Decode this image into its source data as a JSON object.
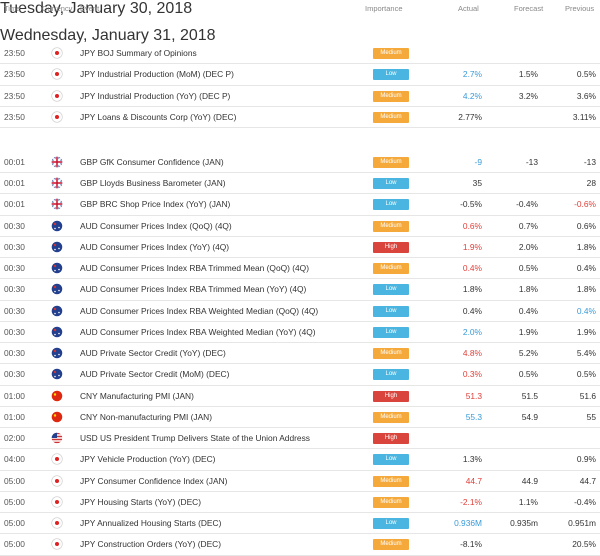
{
  "header": {
    "time": "Time",
    "currency": "Currency",
    "event": "Event",
    "importance": "Importance",
    "actual": "Actual",
    "forecast": "Forecast",
    "previous": "Previous"
  },
  "sections": [
    {
      "date": "Tuesday, January 30, 2018",
      "rows": [
        {
          "time": "23:50",
          "event": "JPY BOJ Summary of Opinions",
          "importance": "Medium",
          "actual": null,
          "forecast": null,
          "previous": null
        },
        {
          "time": "23:50",
          "event": "JPY Industrial Production (MoM) (DEC P)",
          "importance": "Low",
          "actual": "2.7%",
          "actual_color": "#3a9ad9",
          "forecast": "1.5%",
          "previous": "0.5%"
        },
        {
          "time": "23:50",
          "event": "JPY Industrial Production (YoY) (DEC P)",
          "importance": "Medium",
          "actual": "4.2%",
          "actual_color": "#3a9ad9",
          "forecast": "3.2%",
          "previous": "3.6%"
        },
        {
          "time": "23:50",
          "event": "JPY Loans & Discounts Corp (YoY) (DEC)",
          "importance": "Medium",
          "actual": "2.77%",
          "forecast": null,
          "previous": "3.11%"
        }
      ]
    },
    {
      "date": "Wednesday, January 31, 2018",
      "rows": [
        {
          "time": "00:01",
          "event": "GBP GfK Consumer Confidence (JAN)",
          "importance": "Medium",
          "actual": "-9",
          "actual_color": "#3a9ad9",
          "forecast": "-13",
          "previous": "-13"
        },
        {
          "time": "00:01",
          "event": "GBP Lloyds Business Barometer (JAN)",
          "importance": "Low",
          "actual": "35",
          "forecast": null,
          "previous": "28"
        },
        {
          "time": "00:01",
          "event": "GBP BRC Shop Price Index (YoY) (JAN)",
          "importance": "Low",
          "actual": "-0.5%",
          "forecast": "-0.4%",
          "previous": "-0.6%",
          "previous_color": "#e0403a"
        },
        {
          "time": "00:30",
          "event": "AUD Consumer Prices Index (QoQ) (4Q)",
          "importance": "Medium",
          "actual": "0.6%",
          "actual_color": "#e0403a",
          "forecast": "0.7%",
          "previous": "0.6%"
        },
        {
          "time": "00:30",
          "event": "AUD Consumer Prices Index (YoY) (4Q)",
          "importance": "High",
          "actual": "1.9%",
          "actual_color": "#e0403a",
          "forecast": "2.0%",
          "previous": "1.8%"
        },
        {
          "time": "00:30",
          "event": "AUD Consumer Prices Index RBA Trimmed Mean (QoQ) (4Q)",
          "importance": "Medium",
          "actual": "0.4%",
          "actual_color": "#e0403a",
          "forecast": "0.5%",
          "previous": "0.4%"
        },
        {
          "time": "00:30",
          "event": "AUD Consumer Prices Index RBA Trimmed Mean (YoY) (4Q)",
          "importance": "Low",
          "actual": "1.8%",
          "forecast": "1.8%",
          "previous": "1.8%"
        },
        {
          "time": "00:30",
          "event": "AUD Consumer Prices Index RBA Weighted Median (QoQ) (4Q)",
          "importance": "Low",
          "actual": "0.4%",
          "forecast": "0.4%",
          "previous": "0.4%",
          "previous_color": "#3a9ad9"
        },
        {
          "time": "00:30",
          "event": "AUD Consumer Prices Index RBA Weighted Median (YoY) (4Q)",
          "importance": "Low",
          "actual": "2.0%",
          "actual_color": "#3a9ad9",
          "forecast": "1.9%",
          "previous": "1.9%"
        },
        {
          "time": "00:30",
          "event": "AUD Private Sector Credit (YoY) (DEC)",
          "importance": "Medium",
          "actual": "4.8%",
          "actual_color": "#e0403a",
          "forecast": "5.2%",
          "previous": "5.4%"
        },
        {
          "time": "00:30",
          "event": "AUD Private Sector Credit (MoM) (DEC)",
          "importance": "Low",
          "actual": "0.3%",
          "actual_color": "#e0403a",
          "forecast": "0.5%",
          "previous": "0.5%"
        },
        {
          "time": "01:00",
          "event": "CNY Manufacturing PMI (JAN)",
          "importance": "High",
          "actual": "51.3",
          "actual_color": "#e0403a",
          "forecast": "51.5",
          "previous": "51.6"
        },
        {
          "time": "01:00",
          "event": "CNY Non-manufacturing PMI (JAN)",
          "importance": "Medium",
          "actual": "55.3",
          "actual_color": "#3a9ad9",
          "forecast": "54.9",
          "previous": "55"
        },
        {
          "time": "02:00",
          "event": "USD US President Trump Delivers State of the Union Address",
          "importance": "High",
          "actual": null,
          "forecast": null,
          "previous": null
        },
        {
          "time": "04:00",
          "event": "JPY Vehicle Production (YoY) (DEC)",
          "importance": "Low",
          "actual": "1.3%",
          "forecast": null,
          "previous": "0.9%"
        },
        {
          "time": "05:00",
          "event": "JPY Consumer Confidence Index (JAN)",
          "importance": "Medium",
          "actual": "44.7",
          "actual_color": "#e0403a",
          "forecast": "44.9",
          "previous": "44.7"
        },
        {
          "time": "05:00",
          "event": "JPY Housing Starts (YoY) (DEC)",
          "importance": "Medium",
          "actual": "-2.1%",
          "actual_color": "#e0403a",
          "forecast": "1.1%",
          "previous": "-0.4%"
        },
        {
          "time": "05:00",
          "event": "JPY Annualized Housing Starts (DEC)",
          "importance": "Low",
          "actual": "0.936M",
          "actual_color": "#3a9ad9",
          "forecast": "0.935m",
          "previous": "0.951m"
        },
        {
          "time": "05:00",
          "event": "JPY Construction Orders (YoY) (DEC)",
          "importance": "Medium",
          "actual": "-8.1%",
          "forecast": null,
          "previous": "20.5%"
        }
      ]
    }
  ]
}
